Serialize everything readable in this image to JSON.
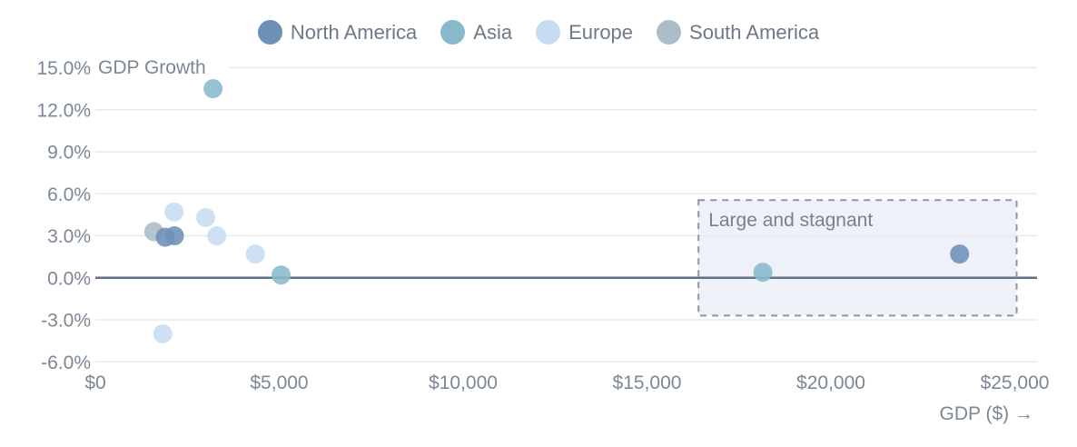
{
  "chart_data": {
    "type": "scatter",
    "title": "",
    "ylabel": "GDP Growth",
    "xlabel": "GDP ($) →",
    "xlim": [
      0,
      25000
    ],
    "ylim": [
      -6,
      15
    ],
    "grid": true,
    "legend_position": "top",
    "x_ticks": [
      {
        "value": 0,
        "label": "$0"
      },
      {
        "value": 5000,
        "label": "$5,000"
      },
      {
        "value": 10000,
        "label": "$10,000"
      },
      {
        "value": 15000,
        "label": "$15,000"
      },
      {
        "value": 20000,
        "label": "$20,000"
      },
      {
        "value": 25000,
        "label": "$25,000"
      }
    ],
    "y_ticks": [
      {
        "value": 15,
        "label": "15.0%"
      },
      {
        "value": 12,
        "label": "12.0%"
      },
      {
        "value": 9,
        "label": "9.0%"
      },
      {
        "value": 6,
        "label": "6.0%"
      },
      {
        "value": 3,
        "label": "3.0%"
      },
      {
        "value": 0,
        "label": "0.0%"
      },
      {
        "value": -3,
        "label": "-3.0%"
      },
      {
        "value": -6,
        "label": "-6.0%"
      }
    ],
    "series": [
      {
        "name": "North America",
        "color": "#6d8fb8",
        "points": [
          {
            "x": 1900,
            "y": 2.9
          },
          {
            "x": 2150,
            "y": 3.0
          },
          {
            "x": 23500,
            "y": 1.7
          }
        ]
      },
      {
        "name": "Asia",
        "color": "#88b9cb",
        "points": [
          {
            "x": 3200,
            "y": 13.5
          },
          {
            "x": 5050,
            "y": 0.2
          },
          {
            "x": 18150,
            "y": 0.4
          }
        ]
      },
      {
        "name": "Europe",
        "color": "#c7dcf2",
        "points": [
          {
            "x": 2140,
            "y": 4.7
          },
          {
            "x": 3000,
            "y": 4.3
          },
          {
            "x": 3300,
            "y": 3.0
          },
          {
            "x": 4350,
            "y": 1.7
          },
          {
            "x": 1830,
            "y": -4.0
          }
        ]
      },
      {
        "name": "South America",
        "color": "#aabdc8",
        "points": [
          {
            "x": 1590,
            "y": 3.3
          }
        ]
      }
    ],
    "annotation": {
      "label": "Large and stagnant",
      "x0": 16400,
      "x1": 25050,
      "y0": -2.7,
      "y1": 5.55,
      "fill": "#eef2f8",
      "border_color": "#8b97a6"
    },
    "colors": {
      "gridline": "#e6e9ee",
      "zero_line": "#5f7183",
      "tick_text": "#7c8795",
      "legend_text": "#6e7987"
    }
  }
}
